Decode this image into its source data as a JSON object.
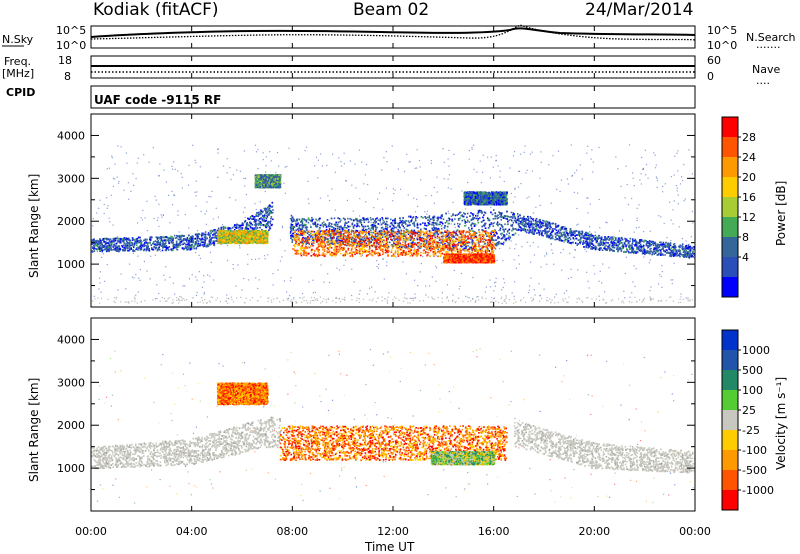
{
  "header": {
    "station": "Kodiak (fitACF)",
    "beam": "Beam 02",
    "date": "24/Mar/2014"
  },
  "strip1": {
    "left_label": "N.Sky",
    "left_ticks": [
      "10^5",
      "10^0"
    ],
    "right_ticks": [
      "10^5",
      "10^0"
    ],
    "right_label": "N.Search",
    "right_legend": "......."
  },
  "strip2": {
    "left_label_top": "Freq.",
    "left_label_bottom": "[MHz]",
    "left_ticks": [
      "18",
      "8"
    ],
    "right_ticks": [
      "60",
      "0"
    ],
    "right_label": "Nave",
    "right_legend": "....",
    "cpid_label": "CPID"
  },
  "cpid": {
    "text": "UAF code -9115 RF"
  },
  "xaxis": {
    "label": "Time UT",
    "ticks": [
      "00:00",
      "04:00",
      "08:00",
      "12:00",
      "16:00",
      "20:00",
      "00:00"
    ]
  },
  "power_panel": {
    "ylabel": "Slant Range [km]",
    "yticks": [
      "4000",
      "3000",
      "2000",
      "1000"
    ],
    "colorbar_label": "Power [dB]",
    "colorbar_ticks": [
      "28",
      "24",
      "20",
      "16",
      "12",
      "8",
      "4"
    ],
    "colors": [
      "#ff0000",
      "#ff5500",
      "#ff9900",
      "#ffcc00",
      "#a8cc33",
      "#44aa55",
      "#336699",
      "#2b4fb8",
      "#0000ff"
    ]
  },
  "velocity_panel": {
    "ylabel": "Slant Range [km]",
    "yticks": [
      "4000",
      "3000",
      "2000",
      "1000"
    ],
    "colorbar_label": "Velocity [m s⁻¹]",
    "colorbar_ticks": [
      "1000",
      "500",
      "100",
      "25",
      "-25",
      "-100",
      "-500",
      "-1000"
    ],
    "colors": [
      "#0033cc",
      "#2255aa",
      "#228866",
      "#55cc33",
      "#c8c8c0",
      "#ffcc00",
      "#ff9900",
      "#ff5500",
      "#ff0000"
    ]
  },
  "chart_data": {
    "type": "heatmap",
    "x_range": [
      "00:00",
      "24:00"
    ],
    "y_range": [
      0,
      4500
    ],
    "power": {
      "band_low_km": [
        [
          0,
          1300
        ],
        [
          4,
          1350
        ],
        [
          6,
          1600
        ],
        [
          7.5,
          1900
        ],
        [
          8,
          1500
        ],
        [
          12,
          1400
        ],
        [
          16,
          1300
        ],
        [
          17,
          1800
        ],
        [
          20,
          1350
        ],
        [
          24,
          1150
        ]
      ],
      "band_high_km": [
        [
          0,
          1600
        ],
        [
          4,
          1700
        ],
        [
          6,
          2000
        ],
        [
          7.5,
          2600
        ],
        [
          8,
          2100
        ],
        [
          12,
          2100
        ],
        [
          16,
          2300
        ],
        [
          17,
          2200
        ],
        [
          20,
          1700
        ],
        [
          24,
          1450
        ]
      ],
      "core_segments": [
        {
          "t0": 8.0,
          "t1": 16.0,
          "r0": 1200,
          "r1": 1800,
          "power_db": 24
        },
        {
          "t0": 14.0,
          "t1": 16.0,
          "r0": 1050,
          "r1": 1250,
          "power_db": 28
        },
        {
          "t0": 5.0,
          "t1": 7.0,
          "r0": 1500,
          "r1": 1800,
          "power_db": 16
        },
        {
          "t0": 6.5,
          "t1": 7.5,
          "r0": 2800,
          "r1": 3100,
          "power_db": 12
        },
        {
          "t0": 14.8,
          "t1": 16.5,
          "r0": 2400,
          "r1": 2700,
          "power_db": 8
        }
      ]
    },
    "velocity": {
      "ground_scatter": [
        [
          0,
          1000,
          1500
        ],
        [
          4,
          1100,
          1700
        ],
        [
          7,
          1500,
          2200
        ],
        [
          17,
          1500,
          2100
        ],
        [
          20,
          1000,
          1600
        ],
        [
          24,
          900,
          1400
        ]
      ],
      "ionospheric_segments": [
        {
          "t0": 7.5,
          "t1": 16.5,
          "r0": 1200,
          "r1": 2000,
          "velocity_ms": -100
        },
        {
          "t0": 13.5,
          "t1": 16.0,
          "r0": 1100,
          "r1": 1400,
          "velocity_ms": 100
        },
        {
          "t0": 5.0,
          "t1": 7.0,
          "r0": 2500,
          "r1": 3000,
          "velocity_ms": -100
        }
      ]
    }
  }
}
